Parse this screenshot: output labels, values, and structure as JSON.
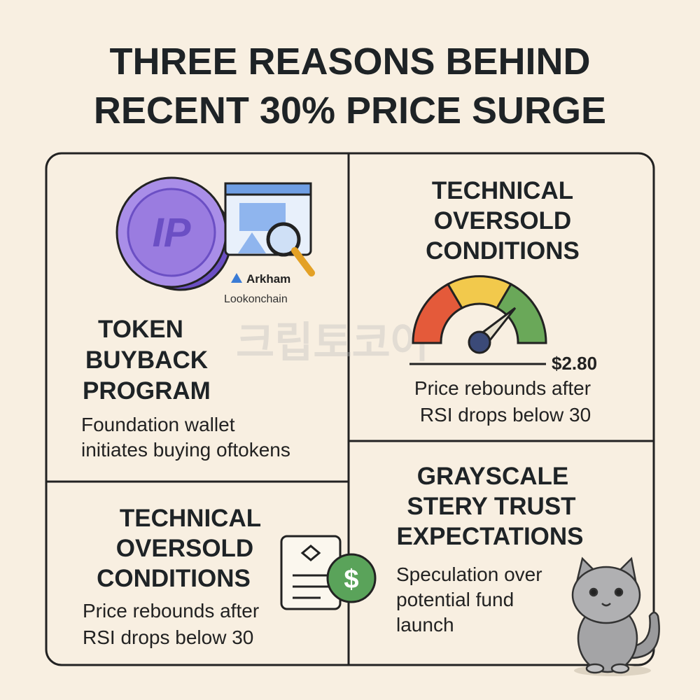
{
  "title": {
    "lines": [
      "THREE REASONS BEHIND",
      "RECENT 30% PRICE SURGE"
    ]
  },
  "watermark": "크립토코어",
  "panels": [
    {
      "icon": {
        "coin": "IP",
        "brand": "Arkham",
        "source": "Lookonchain"
      },
      "heading": [
        "TOKEN",
        "BUYBACK",
        "PROGRAM"
      ],
      "body": [
        "Foundation wallet",
        "initiates buying oftokens"
      ]
    },
    {
      "heading": [
        "TECHNICAL",
        "OVERSOLD",
        "CONDITIONS"
      ],
      "gauge_label": "$2.80",
      "body": [
        "Price rebounds after",
        "RSI drops below 30"
      ]
    },
    {
      "heading": [
        "TECHNICAL",
        "OVERSOLD",
        "CONDITIONS"
      ],
      "body": [
        "Price rebounds after",
        "RSI drops below 30"
      ]
    },
    {
      "heading": [
        "GRAYSCALE",
        "STERY TRUST",
        "EXPECTATIONS"
      ],
      "body": [
        "Speculation over",
        "potential fund",
        "launch"
      ]
    }
  ]
}
